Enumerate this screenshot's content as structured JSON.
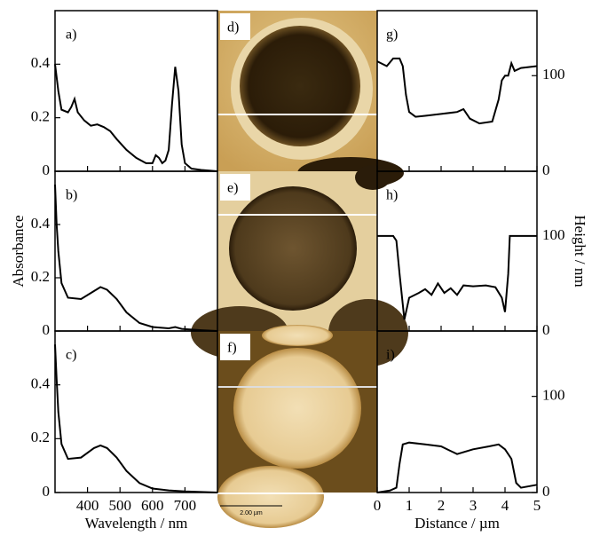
{
  "chart_data": [
    {
      "type": "line",
      "label": "a)",
      "color": "#000000",
      "xlim": [
        300,
        800
      ],
      "ylim": [
        0,
        0.6
      ],
      "xticks": [
        400,
        500,
        600,
        700
      ],
      "yticks": [
        0,
        0.2,
        0.4
      ],
      "x": [
        300,
        310,
        320,
        340,
        350,
        360,
        370,
        390,
        410,
        430,
        450,
        470,
        490,
        520,
        550,
        580,
        600,
        610,
        620,
        630,
        640,
        650,
        660,
        670,
        680,
        690,
        700,
        720,
        750,
        800
      ],
      "values": [
        0.4,
        0.3,
        0.23,
        0.22,
        0.24,
        0.27,
        0.22,
        0.19,
        0.17,
        0.175,
        0.165,
        0.15,
        0.12,
        0.08,
        0.05,
        0.03,
        0.03,
        0.06,
        0.05,
        0.03,
        0.04,
        0.08,
        0.25,
        0.39,
        0.3,
        0.1,
        0.03,
        0.01,
        0.005,
        0.0
      ]
    },
    {
      "type": "line",
      "label": "b)",
      "ylabel": "Absorbance",
      "color": "#000000",
      "xlim": [
        300,
        800
      ],
      "ylim": [
        0,
        0.6
      ],
      "xticks": [
        400,
        500,
        600,
        700
      ],
      "yticks": [
        0,
        0.2,
        0.4
      ],
      "x": [
        300,
        305,
        310,
        320,
        340,
        380,
        420,
        440,
        460,
        490,
        520,
        560,
        600,
        650,
        670,
        690,
        750,
        800
      ],
      "values": [
        0.55,
        0.4,
        0.3,
        0.18,
        0.125,
        0.12,
        0.15,
        0.165,
        0.155,
        0.12,
        0.07,
        0.03,
        0.015,
        0.01,
        0.015,
        0.008,
        0.003,
        0.0
      ]
    },
    {
      "type": "line",
      "label": "c)",
      "xlabel": "Wavelength / nm",
      "color": "#000000",
      "xlim": [
        300,
        800
      ],
      "ylim": [
        0,
        0.6
      ],
      "xticks": [
        400,
        500,
        600,
        700
      ],
      "yticks": [
        0,
        0.2,
        0.4
      ],
      "x": [
        300,
        305,
        310,
        320,
        340,
        380,
        420,
        440,
        460,
        490,
        520,
        560,
        600,
        650,
        700,
        750,
        800
      ],
      "values": [
        0.55,
        0.42,
        0.3,
        0.18,
        0.125,
        0.13,
        0.165,
        0.175,
        0.165,
        0.13,
        0.08,
        0.035,
        0.015,
        0.008,
        0.004,
        0.002,
        0.0
      ]
    },
    {
      "type": "line",
      "label": "g)",
      "color": "#000000",
      "xlim": [
        0,
        5
      ],
      "ylim": [
        0,
        168
      ],
      "xticks": [
        0,
        1,
        2,
        3,
        4,
        5
      ],
      "yticks": [
        0,
        100
      ],
      "x": [
        0,
        0.3,
        0.5,
        0.7,
        0.8,
        0.9,
        1.0,
        1.2,
        1.5,
        2.0,
        2.5,
        2.7,
        2.9,
        3.2,
        3.6,
        3.8,
        3.9,
        4.0,
        4.1,
        4.2,
        4.3,
        4.5,
        5
      ],
      "values": [
        115,
        110,
        118,
        118,
        110,
        80,
        62,
        57,
        58,
        60,
        62,
        65,
        55,
        50,
        52,
        75,
        95,
        100,
        100,
        113,
        105,
        108,
        110
      ]
    },
    {
      "type": "line",
      "label": "h)",
      "ylabel": "Height / nm",
      "color": "#000000",
      "xlim": [
        0,
        5
      ],
      "ylim": [
        0,
        168
      ],
      "xticks": [
        0,
        1,
        2,
        3,
        4,
        5
      ],
      "yticks": [
        0,
        100
      ],
      "x": [
        0,
        0.4,
        0.5,
        0.6,
        0.7,
        0.85,
        1.0,
        1.3,
        1.5,
        1.7,
        1.9,
        2.1,
        2.3,
        2.5,
        2.7,
        3.0,
        3.4,
        3.7,
        3.9,
        4.0,
        4.1,
        4.15,
        4.3,
        5
      ],
      "values": [
        100,
        100,
        100,
        95,
        60,
        12,
        35,
        40,
        44,
        38,
        50,
        40,
        45,
        38,
        48,
        47,
        48,
        46,
        35,
        20,
        60,
        100,
        100,
        100
      ]
    },
    {
      "type": "line",
      "label": "i)",
      "xlabel": "Distance / µm",
      "color": "#000000",
      "xlim": [
        0,
        5
      ],
      "ylim": [
        0,
        168
      ],
      "xticks": [
        0,
        1,
        2,
        3,
        4,
        5
      ],
      "yticks": [
        0,
        100
      ],
      "x": [
        0,
        0.4,
        0.6,
        0.7,
        0.8,
        1.0,
        1.5,
        2.0,
        2.5,
        3.0,
        3.5,
        3.8,
        4.0,
        4.2,
        4.35,
        4.5,
        5
      ],
      "values": [
        0,
        2,
        5,
        30,
        50,
        52,
        50,
        48,
        40,
        45,
        48,
        50,
        45,
        35,
        10,
        5,
        8
      ]
    }
  ],
  "images": [
    {
      "label": "d)"
    },
    {
      "label": "e)"
    },
    {
      "label": "f)"
    }
  ],
  "scale_bar": "2.00 µm"
}
